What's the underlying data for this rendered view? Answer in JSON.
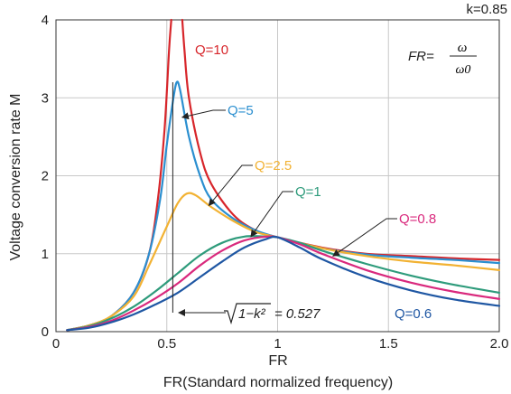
{
  "chart_data": {
    "type": "line",
    "k_label": "k=0.85",
    "xlabel": "FR",
    "xlabel2": "FR(Standard normalized frequency)",
    "ylabel": "Voltage conversion rate M",
    "xlim": [
      0,
      2.0
    ],
    "ylim": [
      0,
      4
    ],
    "xticks": [
      "0",
      "0.5",
      "1",
      "1.5",
      "2.0"
    ],
    "xtick_values": [
      0,
      0.5,
      1,
      1.5,
      2.0
    ],
    "yticks": [
      "0",
      "1",
      "2",
      "3",
      "4"
    ],
    "ytick_values": [
      0,
      1,
      2,
      3,
      4
    ],
    "grid": true,
    "formula": {
      "lhs": "FR=",
      "numerator": "ω",
      "denominator": "ω0"
    },
    "annotation": {
      "radicand": "1−k²",
      "value": "= 0.527",
      "x": 0.527
    },
    "series": [
      {
        "name": "Q=10",
        "color": "#d7262b",
        "points": [
          [
            0.05,
            0.02
          ],
          [
            0.15,
            0.08
          ],
          [
            0.25,
            0.2
          ],
          [
            0.35,
            0.5
          ],
          [
            0.42,
            1.0
          ],
          [
            0.46,
            1.7
          ],
          [
            0.49,
            2.6
          ],
          [
            0.51,
            3.6
          ],
          [
            0.52,
            4.0
          ],
          [
            0.57,
            4.0
          ],
          [
            0.58,
            3.6
          ],
          [
            0.6,
            3.0
          ],
          [
            0.65,
            2.3
          ],
          [
            0.7,
            1.9
          ],
          [
            0.8,
            1.5
          ],
          [
            0.9,
            1.3
          ],
          [
            1.0,
            1.21
          ],
          [
            1.2,
            1.08
          ],
          [
            1.4,
            1.0
          ],
          [
            1.6,
            0.97
          ],
          [
            1.8,
            0.94
          ],
          [
            2.0,
            0.92
          ]
        ]
      },
      {
        "name": "Q=5",
        "color": "#2b8fd0",
        "points": [
          [
            0.05,
            0.02
          ],
          [
            0.15,
            0.08
          ],
          [
            0.25,
            0.2
          ],
          [
            0.35,
            0.5
          ],
          [
            0.42,
            1.0
          ],
          [
            0.47,
            1.7
          ],
          [
            0.5,
            2.4
          ],
          [
            0.53,
            3.0
          ],
          [
            0.545,
            3.2
          ],
          [
            0.56,
            3.1
          ],
          [
            0.6,
            2.5
          ],
          [
            0.65,
            2.0
          ],
          [
            0.7,
            1.7
          ],
          [
            0.8,
            1.45
          ],
          [
            0.9,
            1.3
          ],
          [
            1.0,
            1.21
          ],
          [
            1.2,
            1.07
          ],
          [
            1.4,
            0.99
          ],
          [
            1.6,
            0.95
          ],
          [
            1.8,
            0.92
          ],
          [
            2.0,
            0.88
          ]
        ]
      },
      {
        "name": "Q=2.5",
        "color": "#f2b233",
        "points": [
          [
            0.05,
            0.02
          ],
          [
            0.15,
            0.08
          ],
          [
            0.25,
            0.2
          ],
          [
            0.35,
            0.45
          ],
          [
            0.42,
            0.85
          ],
          [
            0.5,
            1.35
          ],
          [
            0.55,
            1.65
          ],
          [
            0.59,
            1.77
          ],
          [
            0.63,
            1.75
          ],
          [
            0.7,
            1.6
          ],
          [
            0.8,
            1.42
          ],
          [
            0.9,
            1.28
          ],
          [
            1.0,
            1.21
          ],
          [
            1.2,
            1.07
          ],
          [
            1.4,
            0.97
          ],
          [
            1.6,
            0.9
          ],
          [
            1.8,
            0.85
          ],
          [
            2.0,
            0.79
          ]
        ]
      },
      {
        "name": "Q=1",
        "color": "#2e9b7b",
        "points": [
          [
            0.05,
            0.02
          ],
          [
            0.15,
            0.07
          ],
          [
            0.25,
            0.17
          ],
          [
            0.35,
            0.32
          ],
          [
            0.45,
            0.52
          ],
          [
            0.55,
            0.75
          ],
          [
            0.65,
            0.98
          ],
          [
            0.75,
            1.14
          ],
          [
            0.85,
            1.22
          ],
          [
            0.95,
            1.22
          ],
          [
            1.0,
            1.21
          ],
          [
            1.1,
            1.14
          ],
          [
            1.2,
            1.04
          ],
          [
            1.4,
            0.87
          ],
          [
            1.6,
            0.72
          ],
          [
            1.8,
            0.6
          ],
          [
            2.0,
            0.5
          ]
        ]
      },
      {
        "name": "Q=0.8",
        "color": "#d9297d",
        "points": [
          [
            0.05,
            0.02
          ],
          [
            0.15,
            0.06
          ],
          [
            0.25,
            0.14
          ],
          [
            0.35,
            0.27
          ],
          [
            0.45,
            0.43
          ],
          [
            0.55,
            0.62
          ],
          [
            0.65,
            0.85
          ],
          [
            0.75,
            1.04
          ],
          [
            0.85,
            1.17
          ],
          [
            0.95,
            1.22
          ],
          [
            1.0,
            1.21
          ],
          [
            1.1,
            1.12
          ],
          [
            1.2,
            1.0
          ],
          [
            1.4,
            0.79
          ],
          [
            1.6,
            0.63
          ],
          [
            1.8,
            0.51
          ],
          [
            2.0,
            0.42
          ]
        ]
      },
      {
        "name": "Q=0.6",
        "color": "#1f57a3",
        "points": [
          [
            0.05,
            0.02
          ],
          [
            0.15,
            0.05
          ],
          [
            0.25,
            0.12
          ],
          [
            0.35,
            0.22
          ],
          [
            0.45,
            0.35
          ],
          [
            0.55,
            0.5
          ],
          [
            0.65,
            0.7
          ],
          [
            0.75,
            0.9
          ],
          [
            0.85,
            1.08
          ],
          [
            0.95,
            1.19
          ],
          [
            1.0,
            1.21
          ],
          [
            1.1,
            1.08
          ],
          [
            1.2,
            0.93
          ],
          [
            1.4,
            0.7
          ],
          [
            1.6,
            0.53
          ],
          [
            1.8,
            0.41
          ],
          [
            2.0,
            0.33
          ]
        ]
      }
    ],
    "labels": [
      {
        "text": "Q=10",
        "color": "#d7262b"
      },
      {
        "text": "Q=5",
        "color": "#2b8fd0"
      },
      {
        "text": "Q=2.5",
        "color": "#f2b233"
      },
      {
        "text": "Q=1",
        "color": "#2e9b7b"
      },
      {
        "text": "Q=0.8",
        "color": "#d9297d"
      },
      {
        "text": "Q=0.6",
        "color": "#1f57a3"
      }
    ]
  }
}
